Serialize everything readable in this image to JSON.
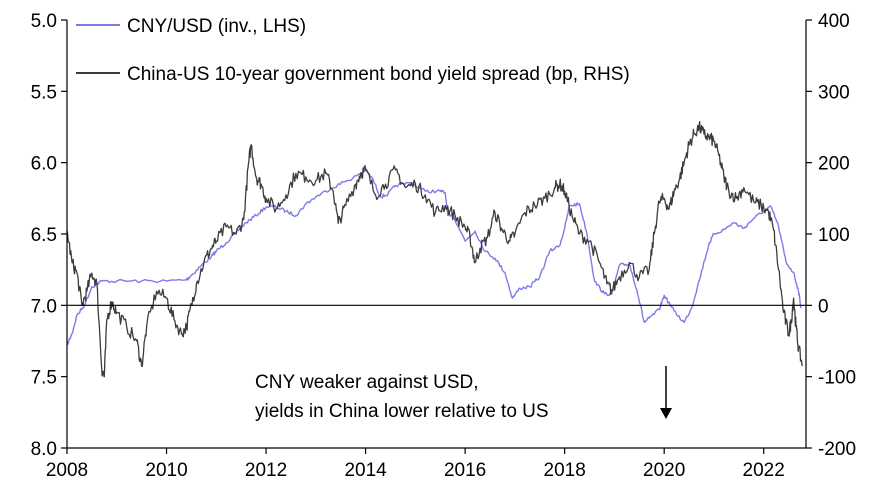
{
  "chart_data": {
    "type": "line",
    "x_range": [
      2008,
      2022.85
    ],
    "x_ticks": [
      "2008",
      "2010",
      "2012",
      "2014",
      "2016",
      "2018",
      "2020",
      "2022"
    ],
    "left_axis": {
      "ylim": [
        5.0,
        8.0
      ],
      "inverted": true,
      "ticks": [
        "5.0",
        "5.5",
        "6.0",
        "6.5",
        "7.0",
        "7.5",
        "8.0"
      ]
    },
    "right_axis": {
      "ylim": [
        -200,
        400
      ],
      "ticks": [
        "400",
        "300",
        "200",
        "100",
        "0",
        "-100",
        "-200"
      ]
    },
    "grid": false,
    "zero_line": {
      "axis": "right",
      "value": 0
    },
    "legend_position": "top-left",
    "colors": {
      "cny": "#7b7bea",
      "spread": "#3c3c3c",
      "axis": "#000000"
    },
    "series": [
      {
        "name": "CNY/USD (inv., LHS)",
        "axis": "left",
        "points": [
          [
            2008.0,
            7.28
          ],
          [
            2008.1,
            7.2
          ],
          [
            2008.2,
            7.07
          ],
          [
            2008.35,
            7.0
          ],
          [
            2008.5,
            6.87
          ],
          [
            2008.7,
            6.83
          ],
          [
            2009.0,
            6.83
          ],
          [
            2009.5,
            6.83
          ],
          [
            2010.0,
            6.83
          ],
          [
            2010.4,
            6.82
          ],
          [
            2010.5,
            6.79
          ],
          [
            2010.7,
            6.72
          ],
          [
            2010.9,
            6.66
          ],
          [
            2011.0,
            6.62
          ],
          [
            2011.2,
            6.56
          ],
          [
            2011.4,
            6.49
          ],
          [
            2011.6,
            6.42
          ],
          [
            2011.8,
            6.37
          ],
          [
            2012.0,
            6.31
          ],
          [
            2012.2,
            6.31
          ],
          [
            2012.4,
            6.34
          ],
          [
            2012.6,
            6.37
          ],
          [
            2012.8,
            6.29
          ],
          [
            2013.0,
            6.24
          ],
          [
            2013.3,
            6.18
          ],
          [
            2013.6,
            6.13
          ],
          [
            2013.9,
            6.08
          ],
          [
            2014.0,
            6.05
          ],
          [
            2014.15,
            6.12
          ],
          [
            2014.3,
            6.24
          ],
          [
            2014.45,
            6.22
          ],
          [
            2014.6,
            6.16
          ],
          [
            2014.9,
            6.14
          ],
          [
            2015.2,
            6.2
          ],
          [
            2015.5,
            6.2
          ],
          [
            2015.6,
            6.21
          ],
          [
            2015.65,
            6.37
          ],
          [
            2015.75,
            6.36
          ],
          [
            2016.0,
            6.55
          ],
          [
            2016.2,
            6.48
          ],
          [
            2016.4,
            6.62
          ],
          [
            2016.6,
            6.67
          ],
          [
            2016.8,
            6.77
          ],
          [
            2016.95,
            6.95
          ],
          [
            2017.1,
            6.88
          ],
          [
            2017.3,
            6.87
          ],
          [
            2017.5,
            6.8
          ],
          [
            2017.7,
            6.62
          ],
          [
            2017.9,
            6.58
          ],
          [
            2018.0,
            6.46
          ],
          [
            2018.1,
            6.3
          ],
          [
            2018.3,
            6.29
          ],
          [
            2018.45,
            6.5
          ],
          [
            2018.6,
            6.83
          ],
          [
            2018.8,
            6.92
          ],
          [
            2018.95,
            6.92
          ],
          [
            2019.1,
            6.72
          ],
          [
            2019.3,
            6.71
          ],
          [
            2019.45,
            6.89
          ],
          [
            2019.6,
            7.12
          ],
          [
            2019.7,
            7.09
          ],
          [
            2019.9,
            7.03
          ],
          [
            2020.0,
            6.93
          ],
          [
            2020.2,
            7.04
          ],
          [
            2020.4,
            7.12
          ],
          [
            2020.55,
            7.02
          ],
          [
            2020.7,
            6.83
          ],
          [
            2020.9,
            6.57
          ],
          [
            2021.0,
            6.5
          ],
          [
            2021.2,
            6.47
          ],
          [
            2021.4,
            6.42
          ],
          [
            2021.6,
            6.46
          ],
          [
            2021.8,
            6.39
          ],
          [
            2022.0,
            6.34
          ],
          [
            2022.15,
            6.31
          ],
          [
            2022.3,
            6.45
          ],
          [
            2022.45,
            6.7
          ],
          [
            2022.6,
            6.77
          ],
          [
            2022.7,
            6.9
          ],
          [
            2022.75,
            7.02
          ]
        ]
      },
      {
        "name": "China-US 10-year government bond yield spread (bp, RHS)",
        "axis": "right",
        "points": [
          [
            2008.0,
            105
          ],
          [
            2008.1,
            60
          ],
          [
            2008.2,
            45
          ],
          [
            2008.3,
            0
          ],
          [
            2008.4,
            20
          ],
          [
            2008.5,
            45
          ],
          [
            2008.6,
            30
          ],
          [
            2008.7,
            -90
          ],
          [
            2008.75,
            -100
          ],
          [
            2008.8,
            -20
          ],
          [
            2008.9,
            5
          ],
          [
            2009.0,
            -10
          ],
          [
            2009.2,
            -30
          ],
          [
            2009.4,
            -50
          ],
          [
            2009.5,
            -85
          ],
          [
            2009.6,
            -30
          ],
          [
            2009.8,
            20
          ],
          [
            2010.0,
            10
          ],
          [
            2010.15,
            -20
          ],
          [
            2010.3,
            -40
          ],
          [
            2010.4,
            -30
          ],
          [
            2010.5,
            0
          ],
          [
            2010.6,
            30
          ],
          [
            2010.75,
            60
          ],
          [
            2010.9,
            80
          ],
          [
            2011.0,
            90
          ],
          [
            2011.2,
            110
          ],
          [
            2011.4,
            100
          ],
          [
            2011.55,
            120
          ],
          [
            2011.65,
            200
          ],
          [
            2011.7,
            225
          ],
          [
            2011.8,
            180
          ],
          [
            2011.9,
            170
          ],
          [
            2012.0,
            150
          ],
          [
            2012.2,
            135
          ],
          [
            2012.4,
            155
          ],
          [
            2012.6,
            185
          ],
          [
            2012.8,
            180
          ],
          [
            2013.0,
            175
          ],
          [
            2013.2,
            185
          ],
          [
            2013.35,
            160
          ],
          [
            2013.45,
            115
          ],
          [
            2013.6,
            140
          ],
          [
            2013.8,
            170
          ],
          [
            2013.9,
            185
          ],
          [
            2014.0,
            190
          ],
          [
            2014.2,
            155
          ],
          [
            2014.4,
            170
          ],
          [
            2014.6,
            190
          ],
          [
            2014.8,
            165
          ],
          [
            2015.0,
            170
          ],
          [
            2015.2,
            155
          ],
          [
            2015.4,
            130
          ],
          [
            2015.6,
            140
          ],
          [
            2015.8,
            125
          ],
          [
            2016.0,
            110
          ],
          [
            2016.1,
            95
          ],
          [
            2016.2,
            60
          ],
          [
            2016.3,
            80
          ],
          [
            2016.45,
            95
          ],
          [
            2016.6,
            130
          ],
          [
            2016.75,
            105
          ],
          [
            2016.9,
            90
          ],
          [
            2017.0,
            100
          ],
          [
            2017.2,
            130
          ],
          [
            2017.4,
            140
          ],
          [
            2017.6,
            150
          ],
          [
            2017.8,
            165
          ],
          [
            2017.9,
            170
          ],
          [
            2018.0,
            160
          ],
          [
            2018.15,
            125
          ],
          [
            2018.3,
            100
          ],
          [
            2018.5,
            90
          ],
          [
            2018.7,
            60
          ],
          [
            2018.85,
            30
          ],
          [
            2018.95,
            20
          ],
          [
            2019.1,
            40
          ],
          [
            2019.3,
            60
          ],
          [
            2019.5,
            40
          ],
          [
            2019.7,
            50
          ],
          [
            2019.8,
            100
          ],
          [
            2019.9,
            145
          ],
          [
            2020.0,
            150
          ],
          [
            2020.1,
            135
          ],
          [
            2020.2,
            160
          ],
          [
            2020.3,
            175
          ],
          [
            2020.4,
            200
          ],
          [
            2020.5,
            225
          ],
          [
            2020.6,
            240
          ],
          [
            2020.7,
            250
          ],
          [
            2020.8,
            240
          ],
          [
            2020.9,
            235
          ],
          [
            2021.0,
            230
          ],
          [
            2021.1,
            210
          ],
          [
            2021.2,
            180
          ],
          [
            2021.3,
            160
          ],
          [
            2021.45,
            150
          ],
          [
            2021.6,
            165
          ],
          [
            2021.8,
            145
          ],
          [
            2021.95,
            140
          ],
          [
            2022.1,
            130
          ],
          [
            2022.2,
            105
          ],
          [
            2022.3,
            50
          ],
          [
            2022.4,
            -10
          ],
          [
            2022.5,
            -40
          ],
          [
            2022.55,
            -25
          ],
          [
            2022.6,
            10
          ],
          [
            2022.65,
            -30
          ],
          [
            2022.7,
            -60
          ],
          [
            2022.78,
            -85
          ]
        ]
      }
    ],
    "annotation": {
      "lines": [
        "CNY weaker against USD,",
        "yields in China lower relative to US"
      ],
      "arrow": "down"
    }
  }
}
